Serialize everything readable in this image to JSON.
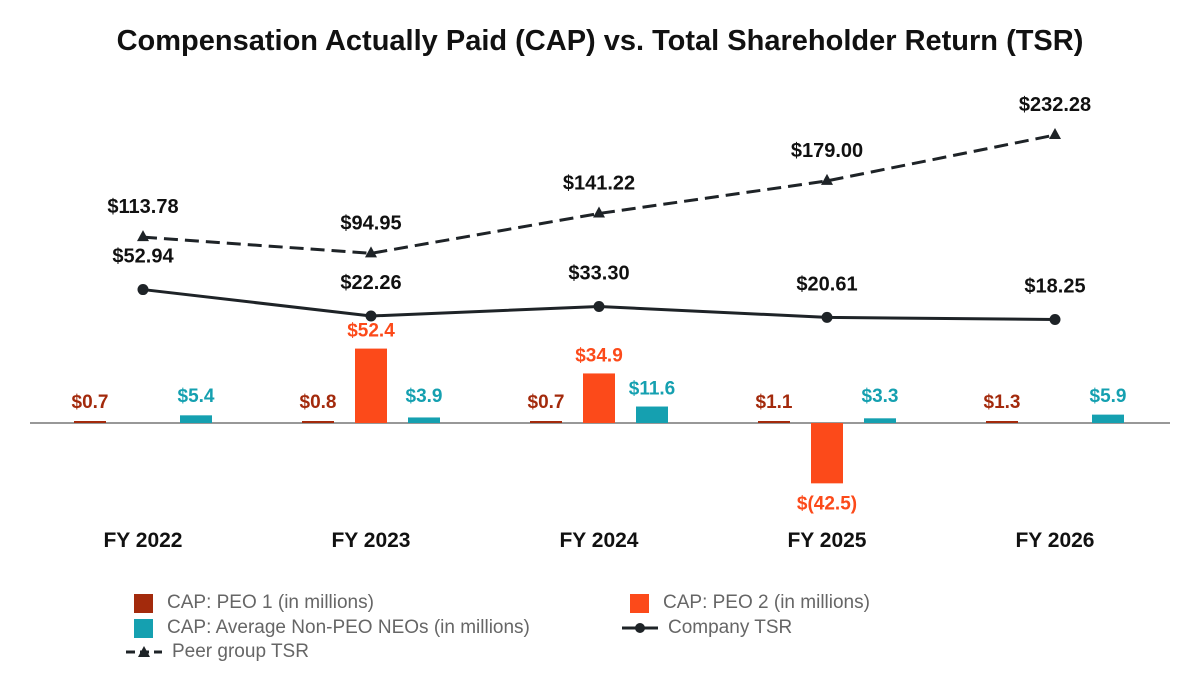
{
  "chart_data": {
    "type": "bar",
    "title": "Compensation Actually Paid (CAP) vs. Total Shareholder Return (TSR)",
    "categories": [
      "FY 2022",
      "FY 2023",
      "FY 2024",
      "FY 2025",
      "FY 2026"
    ],
    "series": [
      {
        "name": "CAP: PEO 1 (in millions)",
        "type": "bar",
        "color": "#A32A0C",
        "values": [
          0.7,
          0.8,
          0.7,
          1.1,
          1.3
        ],
        "labels": [
          "$0.7",
          "$0.8",
          "$0.7",
          "$1.1",
          "$1.3"
        ]
      },
      {
        "name": "CAP: PEO 2 (in millions)",
        "type": "bar",
        "color": "#FC4A1A",
        "values": [
          null,
          52.4,
          34.9,
          -42.5,
          null
        ],
        "labels": [
          "",
          "$52.4",
          "$34.9",
          "$(42.5)",
          ""
        ]
      },
      {
        "name": "CAP: Average Non-PEO NEOs (in millions)",
        "type": "bar",
        "color": "#15A0B0",
        "values": [
          5.4,
          3.9,
          11.6,
          3.3,
          5.9
        ],
        "labels": [
          "$5.4",
          "$3.9",
          "$11.6",
          "$3.3",
          "$5.9"
        ]
      },
      {
        "name": "Company TSR",
        "type": "line",
        "color": "#1E2327",
        "values": [
          52.94,
          22.26,
          33.3,
          20.61,
          18.25
        ],
        "labels": [
          "$52.94",
          "$22.26",
          "$33.30",
          "$20.61",
          "$18.25"
        ]
      },
      {
        "name": "Peer group TSR",
        "type": "line",
        "style": "dashed",
        "color": "#1E2327",
        "values": [
          113.78,
          94.95,
          141.22,
          179.0,
          232.28
        ],
        "labels": [
          "$113.78",
          "$94.95",
          "$141.22",
          "$179.00",
          "$232.28"
        ]
      }
    ],
    "grid": false,
    "legend": "bottom"
  }
}
